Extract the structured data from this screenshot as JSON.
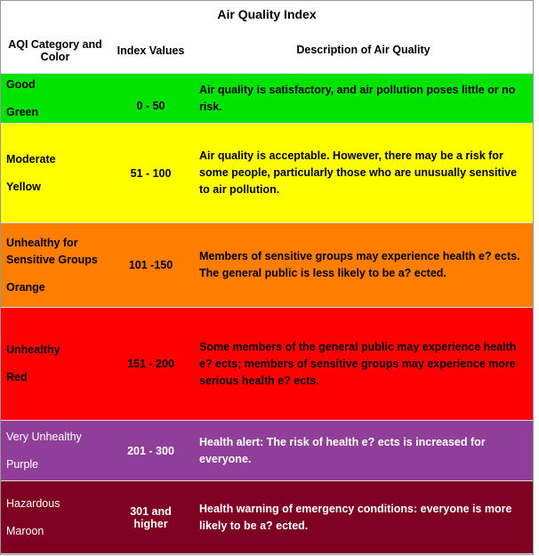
{
  "title": "Air Quality Index",
  "header": [
    "AQI Category and Color",
    "Index Values",
    "Description of Air Quality"
  ],
  "rows": [
    {
      "category": "Good",
      "color": "Green",
      "index": "0 - 50",
      "description": "Air quality is satisfactory, and air pollution poses little or no risk."
    },
    {
      "category": "Moderate",
      "color": "Yellow",
      "index": "51 - 100",
      "description": "Air quality is acceptable. However, there may be a risk for some people, particularly those who are unusually sensitive to air pollution."
    },
    {
      "category": "Unhealthy for Sensitive Groups",
      "color": "Orange",
      "index": "101 -150",
      "description": "Members of sensitive groups may experience health e? ects. The general public is less likely to be a? ected."
    },
    {
      "category": "Unhealthy",
      "color": "Red",
      "index": "151 - 200",
      "description": "Some members of the general public may experience health e? ects; members of sensitive groups may experience more serious health e? ects."
    },
    {
      "category": "Very Unhealthy",
      "color": "Purple",
      "index": "201 - 300",
      "description": "Health alert: The risk of health e? ects is increased for everyone."
    },
    {
      "category": "Hazardous",
      "color": "Maroon",
      "index": "301 and higher",
      "description": "Health warning of emergency conditions: everyone is more likely to be a? ected."
    }
  ]
}
